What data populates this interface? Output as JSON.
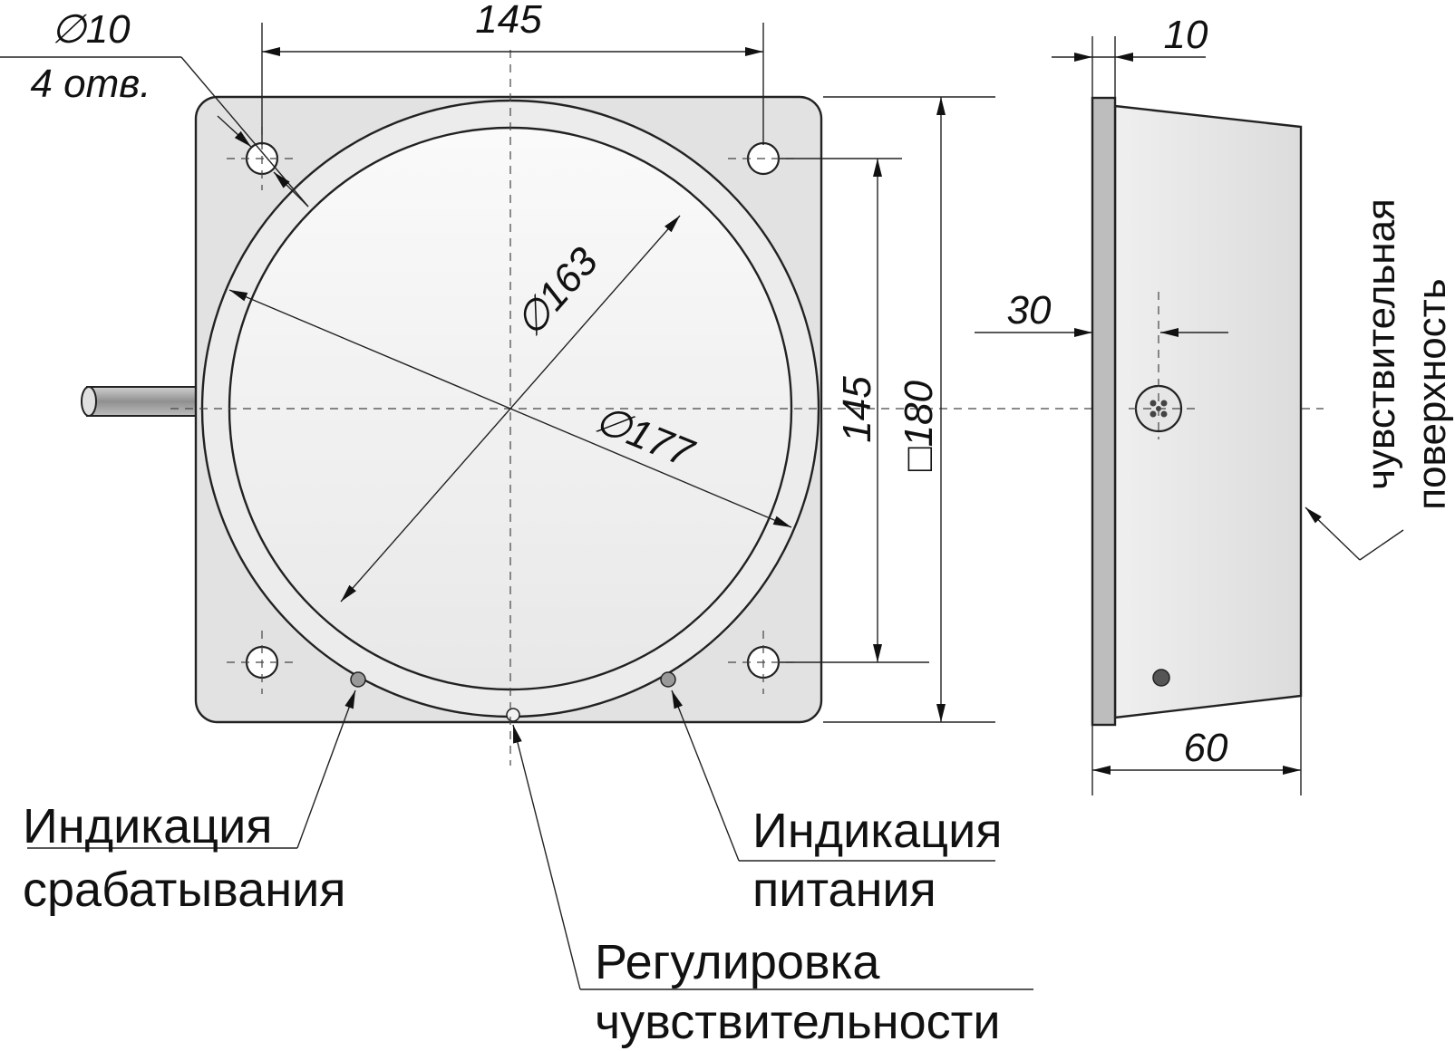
{
  "colors": {
    "line": "#222222",
    "body_fill": "#e6e6e6",
    "face_fill": "#f6f6f6",
    "flange_fill": "#bdbdbd"
  },
  "dimensions": {
    "hole_diameter": "∅10",
    "hole_count": "4 отв.",
    "hole_spacing_top": "145",
    "hole_spacing_side": "145",
    "square_size": "□180",
    "inner_diameter": "∅163",
    "outer_diameter": "∅177",
    "flange_thickness": "10",
    "center_height": "30",
    "body_depth": "60"
  },
  "labels": {
    "trip_indication_l1": "Индикация",
    "trip_indication_l2": "срабатывания",
    "power_indication_l1": "Индикация",
    "power_indication_l2": "питания",
    "sensitivity_adjust_l1": "Регулировка",
    "sensitivity_adjust_l2": "чувствительности",
    "sensing_surface_l1": "чувствительная",
    "sensing_surface_l2": "поверхность"
  }
}
